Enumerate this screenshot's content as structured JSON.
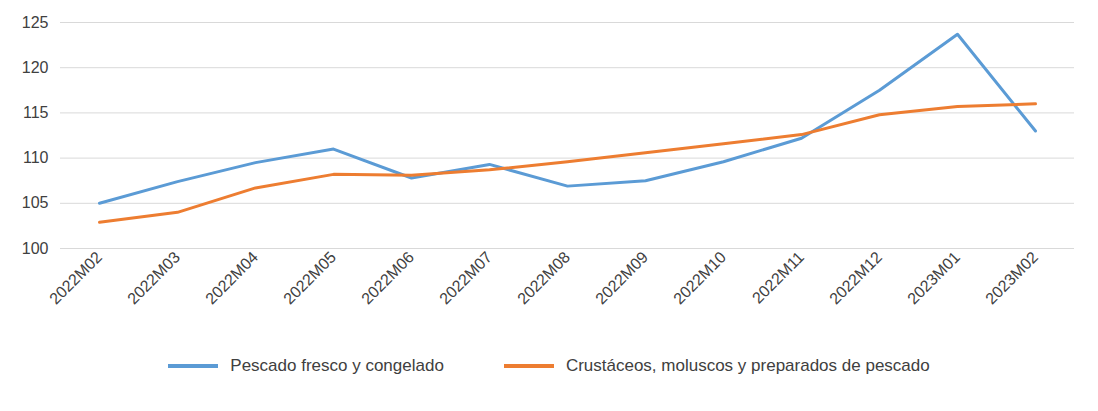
{
  "chart_data": {
    "type": "line",
    "categories": [
      "2022M02",
      "2022M03",
      "2022M04",
      "2022M05",
      "2022M06",
      "2022M07",
      "2022M08",
      "2022M09",
      "2022M10",
      "2022M11",
      "2022M12",
      "2023M01",
      "2023M02"
    ],
    "series": [
      {
        "name": "Pescado fresco y congelado",
        "color": "#5b9bd5",
        "values": [
          105,
          107.4,
          109.5,
          111,
          107.8,
          109.3,
          106.9,
          107.5,
          109.6,
          112.2,
          117.5,
          123.7,
          113
        ]
      },
      {
        "name": "Crustáceos, moluscos y preparados de pescado",
        "color": "#ed7d31",
        "values": [
          102.9,
          104,
          106.7,
          108.2,
          108.1,
          108.7,
          109.6,
          110.6,
          111.6,
          112.6,
          114.8,
          115.7,
          116
        ]
      }
    ],
    "ylim": [
      100,
      125
    ],
    "yticks": [
      100,
      105,
      110,
      115,
      120,
      125
    ],
    "grid": true,
    "legend": "bottom"
  }
}
